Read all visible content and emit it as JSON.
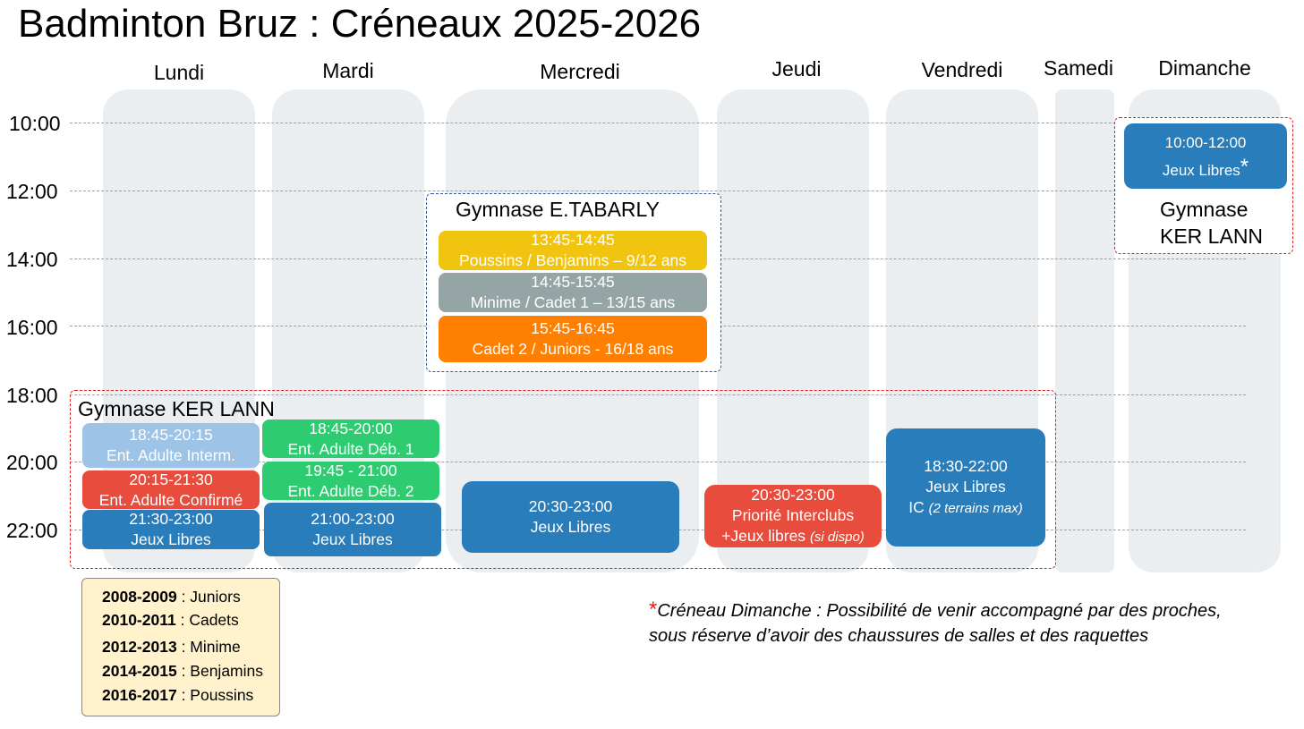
{
  "title": "Badminton Bruz : Créneaux 2025-2026",
  "days": [
    "Lundi",
    "Mardi",
    "Mercredi",
    "Jeudi",
    "Vendredi",
    "Samedi",
    "Dimanche"
  ],
  "times": [
    "10:00",
    "12:00",
    "14:00",
    "16:00",
    "18:00",
    "20:00",
    "22:00"
  ],
  "colors": {
    "blue": "#2a7dbb",
    "light_blue": "#9dc3e6",
    "red": "#e74c3c",
    "green": "#2ecc71",
    "yellow": "#f1c40f",
    "grey": "#95a5a6",
    "orange": "#ff8000"
  },
  "gymnase_tabarly": "Gymnase E.TABARLY",
  "gymnase_kerlann": "Gymnase KER LANN",
  "gymnase_kerlann_sunday": [
    "Gymnase",
    "KER LANN"
  ],
  "slots": {
    "mer1": {
      "time": "13:45-14:45",
      "label": "Poussins / Benjamins – 9/12 ans"
    },
    "mer2": {
      "time": "14:45-15:45",
      "label": "Minime / Cadet 1 – 13/15 ans"
    },
    "mer3": {
      "time": "15:45-16:45",
      "label": "Cadet 2 / Juniors -  16/18 ans"
    },
    "lun1": {
      "time": "18:45-20:15",
      "label": "Ent. Adulte Interm."
    },
    "lun2": {
      "time": "20:15-21:30",
      "label": "Ent. Adulte Confirmé"
    },
    "lun3": {
      "time": "21:30-23:00",
      "label": "Jeux Libres"
    },
    "mar1": {
      "time": "18:45-20:00",
      "label": "Ent. Adulte Déb. 1"
    },
    "mar2": {
      "time": "19:45 - 21:00",
      "label": "Ent. Adulte Déb. 2"
    },
    "mar3": {
      "time": "21:00-23:00",
      "label": "Jeux Libres"
    },
    "mer4": {
      "time": "20:30-23:00",
      "label": "Jeux Libres"
    },
    "jeu1": {
      "time": "20:30-23:00",
      "label": "Priorité Interclubs",
      "label2": "+Jeux libres",
      "note": "(si dispo)"
    },
    "ven1": {
      "time": "18:30-22:00",
      "label": "Jeux Libres",
      "label2": "IC",
      "note": "(2 terrains max)"
    },
    "dim1": {
      "time": "10:00-12:00",
      "label": "Jeux Libres",
      "star": "*"
    }
  },
  "legend": [
    {
      "years": "2008-2009",
      "cat": " : Juniors"
    },
    {
      "years": "2010-2011",
      "cat": " : Cadets"
    },
    {
      "years": "2012-2013",
      "cat": " : Minime"
    },
    {
      "years": "2014-2015",
      "cat": " : Benjamins"
    },
    {
      "years": "2016-2017",
      "cat": " : Poussins"
    }
  ],
  "note": {
    "star": "*",
    "line1": "Créneau Dimanche : Possibilité de venir accompagné par des proches,",
    "line2": "sous réserve d’avoir des chaussures de salles et des raquettes"
  }
}
